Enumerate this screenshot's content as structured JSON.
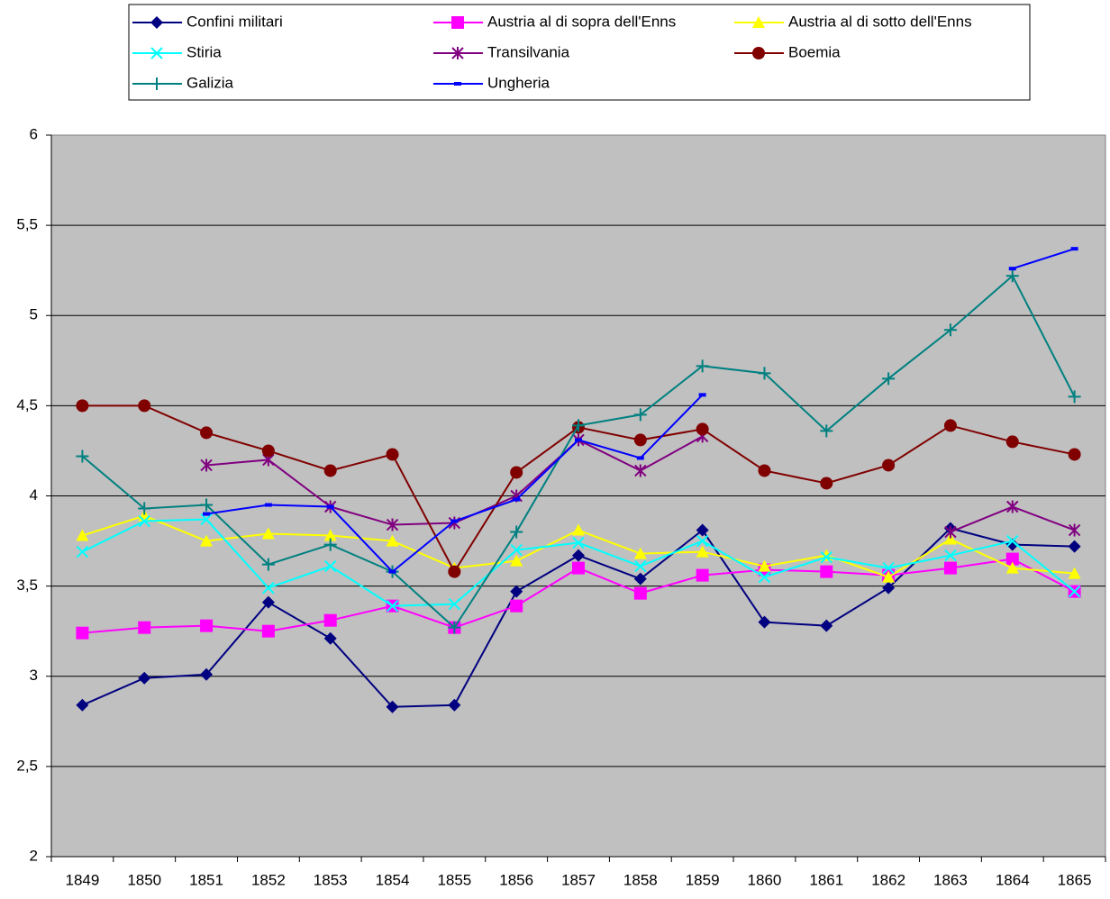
{
  "chart_data": {
    "type": "line",
    "categories": [
      "1849",
      "1850",
      "1851",
      "1852",
      "1853",
      "1854",
      "1855",
      "1856",
      "1857",
      "1858",
      "1859",
      "1860",
      "1861",
      "1862",
      "1863",
      "1864",
      "1865"
    ],
    "ylim": [
      2,
      6
    ],
    "yticks": [
      2,
      {
        "value": 2.5,
        "label": "2,5"
      },
      3,
      {
        "value": 3.5,
        "label": "3,5"
      },
      4,
      {
        "value": 4.5,
        "label": "4,5"
      },
      5,
      {
        "value": 5.5,
        "label": "5,5"
      },
      6
    ],
    "grid": true,
    "legend": "top",
    "series": [
      {
        "name": "Confini militari",
        "color": "#000080",
        "marker": "diamond",
        "values": [
          2.84,
          2.99,
          3.01,
          3.41,
          3.21,
          2.83,
          2.84,
          3.47,
          3.67,
          3.54,
          3.81,
          3.3,
          3.28,
          3.49,
          3.82,
          3.73,
          3.72
        ]
      },
      {
        "name": "Austria al di sopra dell'Enns",
        "color": "#ff00ff",
        "marker": "square",
        "values": [
          3.24,
          3.27,
          3.28,
          3.25,
          3.31,
          3.39,
          3.27,
          3.39,
          3.6,
          3.46,
          3.56,
          3.59,
          3.58,
          3.56,
          3.6,
          3.65,
          3.47
        ]
      },
      {
        "name": "Austria al di sotto dell'Enns",
        "color": "#ffff00",
        "marker": "triangle",
        "values": [
          3.78,
          3.89,
          3.75,
          3.79,
          3.78,
          3.75,
          3.6,
          3.64,
          3.81,
          3.68,
          3.69,
          3.61,
          3.67,
          3.55,
          3.76,
          3.6,
          3.57
        ]
      },
      {
        "name": "Stiria",
        "color": "#00ffff",
        "marker": "x",
        "values": [
          3.69,
          3.86,
          3.87,
          3.49,
          3.61,
          3.39,
          3.4,
          3.7,
          3.74,
          3.61,
          3.75,
          3.55,
          3.66,
          3.6,
          3.67,
          3.75,
          3.47
        ]
      },
      {
        "name": "Transilvania",
        "color": "#800080",
        "marker": "star",
        "values": [
          null,
          null,
          4.17,
          4.2,
          3.94,
          3.84,
          3.85,
          4.0,
          4.31,
          4.14,
          4.33,
          null,
          null,
          null,
          3.8,
          3.94,
          3.81
        ]
      },
      {
        "name": "Boemia",
        "color": "#800000",
        "marker": "circle",
        "values": [
          4.5,
          4.5,
          4.35,
          4.25,
          4.14,
          4.23,
          3.58,
          4.13,
          4.38,
          4.31,
          4.37,
          4.14,
          4.07,
          4.17,
          4.39,
          4.3,
          4.23
        ]
      },
      {
        "name": "Galizia",
        "color": "#008080",
        "marker": "plus",
        "values": [
          4.22,
          3.93,
          3.95,
          3.62,
          3.73,
          3.58,
          3.27,
          3.8,
          4.39,
          4.45,
          4.72,
          4.68,
          4.36,
          4.65,
          4.92,
          5.22,
          4.55
        ]
      },
      {
        "name": "Ungheria",
        "color": "#0000ff",
        "marker": "dash",
        "values": [
          null,
          null,
          3.9,
          3.95,
          3.94,
          3.58,
          3.86,
          3.98,
          4.31,
          4.21,
          4.56,
          null,
          null,
          null,
          null,
          5.26,
          5.37
        ]
      }
    ]
  }
}
